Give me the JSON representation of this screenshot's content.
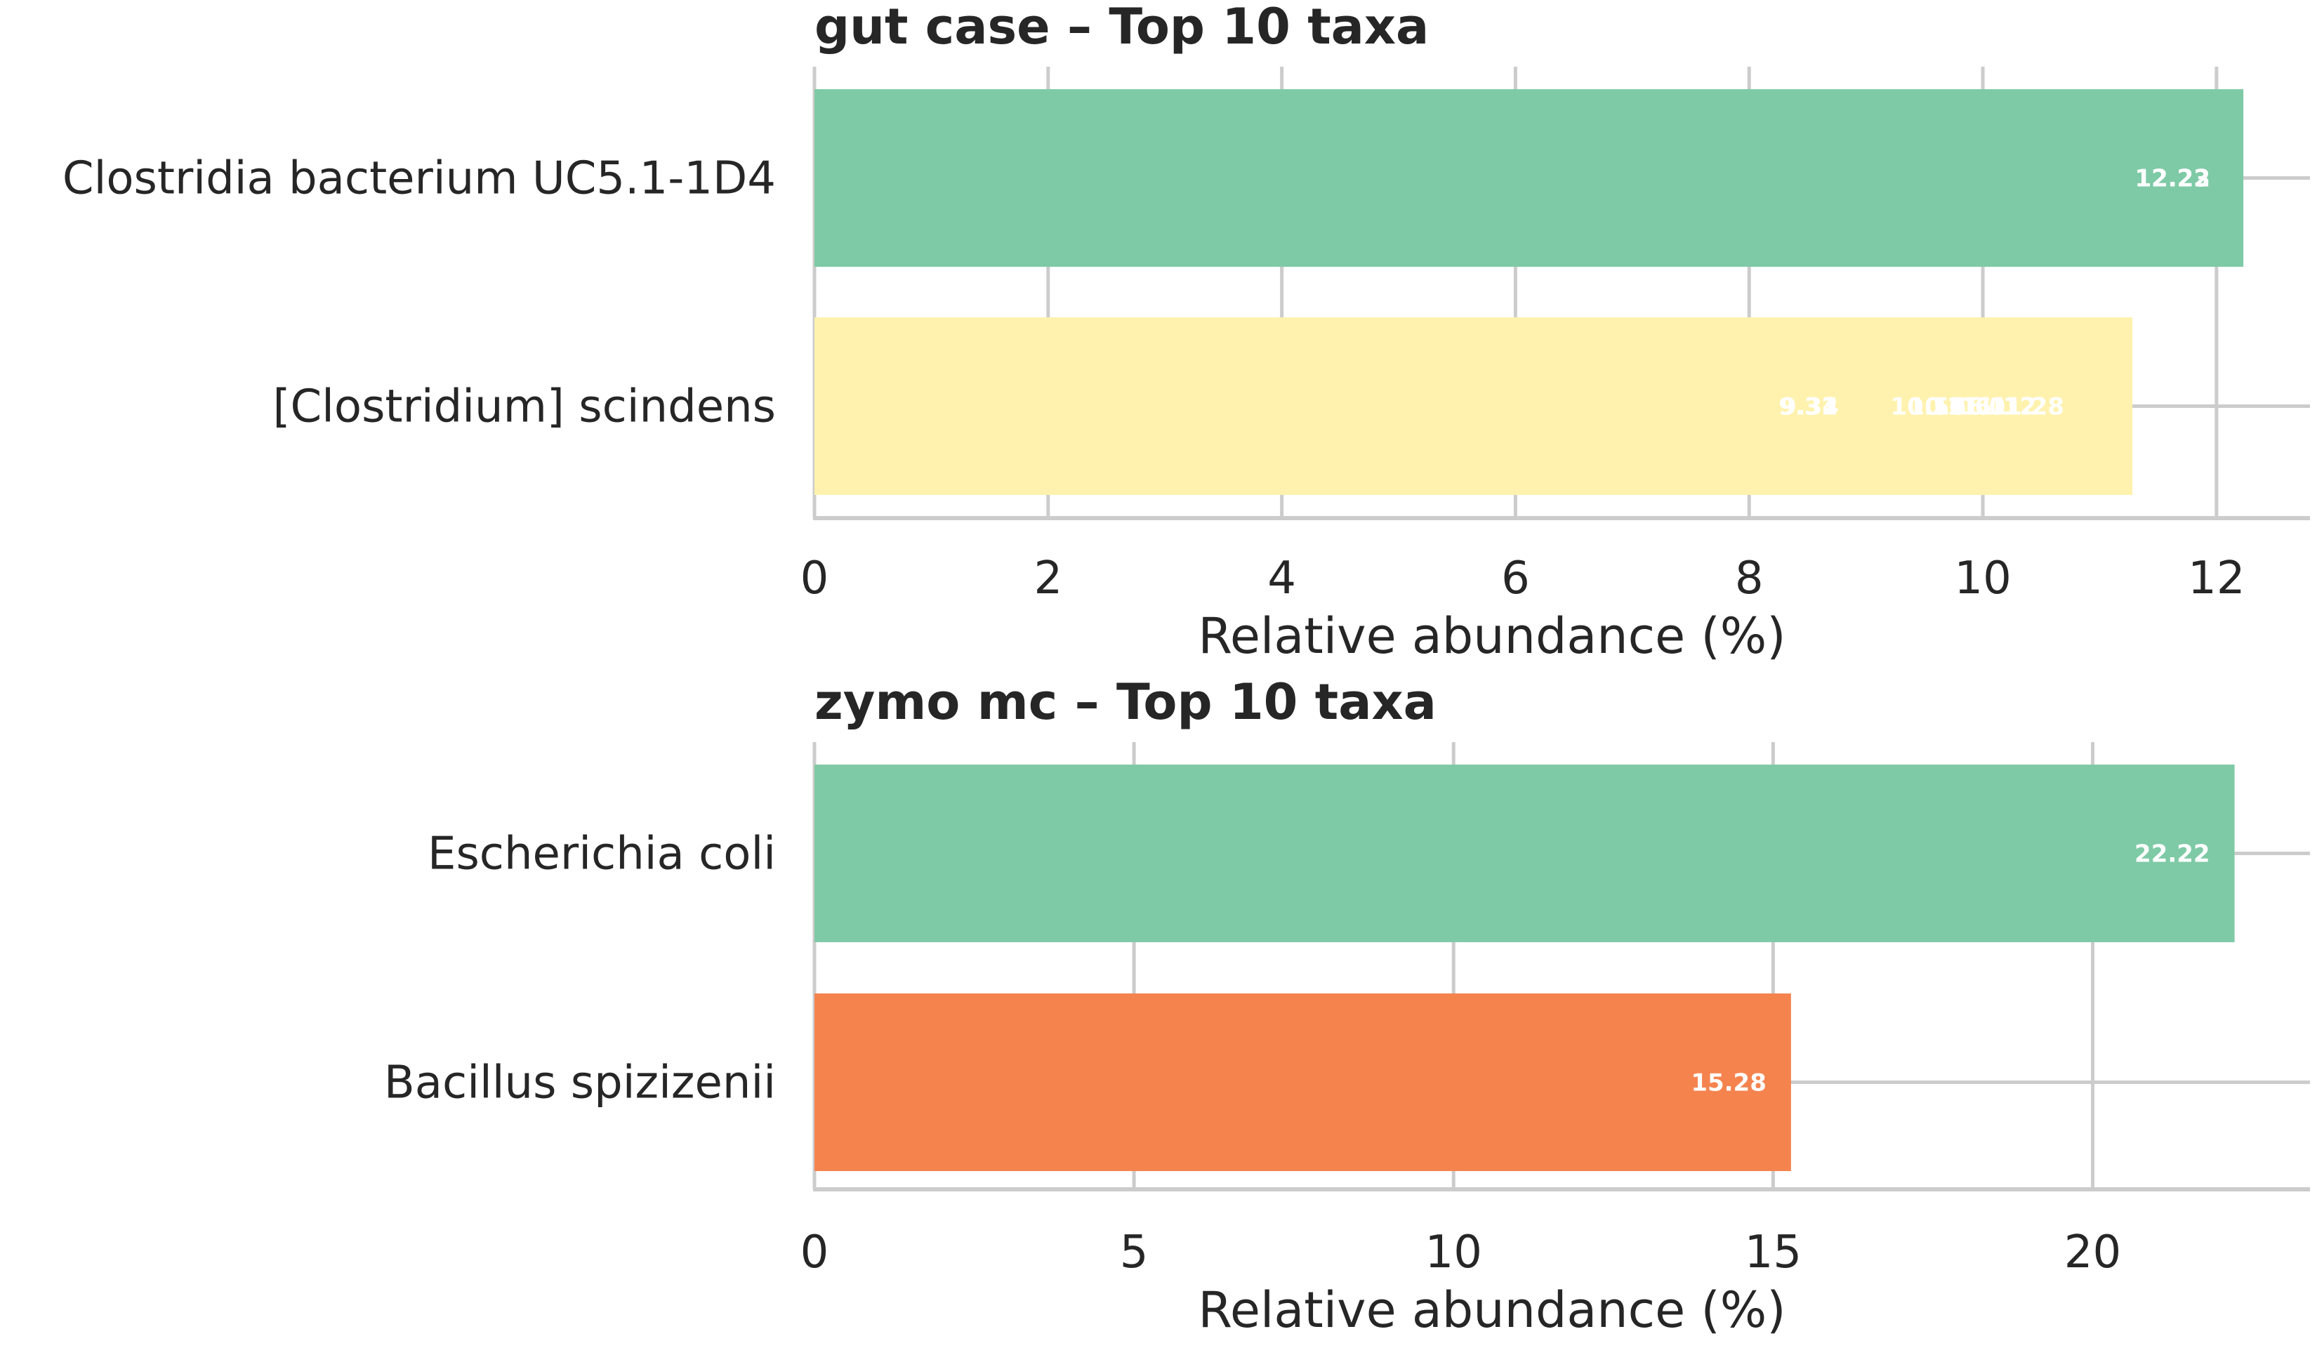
{
  "chart_data": [
    {
      "type": "bar",
      "orientation": "horizontal",
      "title": "gut case – Top 10 taxa",
      "xlabel": "Relative abundance (%)",
      "ylabel": "",
      "xlim": [
        0,
        12.8
      ],
      "xticks": [
        0,
        2,
        4,
        6,
        8,
        10,
        12
      ],
      "grid": true,
      "categories": [
        "Clostridia bacterium UC5.1-1D4",
        "[Clostridium] scindens"
      ],
      "values": [
        12.23,
        11.28
      ],
      "colors": [
        "#7fcaa6",
        "#fff2ae"
      ],
      "data_labels": [
        [
          "12.23",
          "12.22"
        ],
        [
          "9.31",
          "9.32",
          "9.34",
          "10.51",
          "10.56",
          "10.61",
          "11.01",
          "11.12",
          "11.28"
        ]
      ]
    },
    {
      "type": "bar",
      "orientation": "horizontal",
      "title": "zymo mc – Top 10 taxa",
      "xlabel": "Relative abundance (%)",
      "ylabel": "",
      "xlim": [
        0,
        23.4
      ],
      "xticks": [
        0,
        5,
        10,
        15,
        20
      ],
      "grid": true,
      "categories": [
        "Escherichia coli",
        "Bacillus spizizenii"
      ],
      "values": [
        22.22,
        15.28
      ],
      "colors": [
        "#7fcaa6",
        "#f5834e"
      ],
      "data_labels": [
        [
          "22.22"
        ],
        [
          "15.28"
        ]
      ]
    }
  ]
}
